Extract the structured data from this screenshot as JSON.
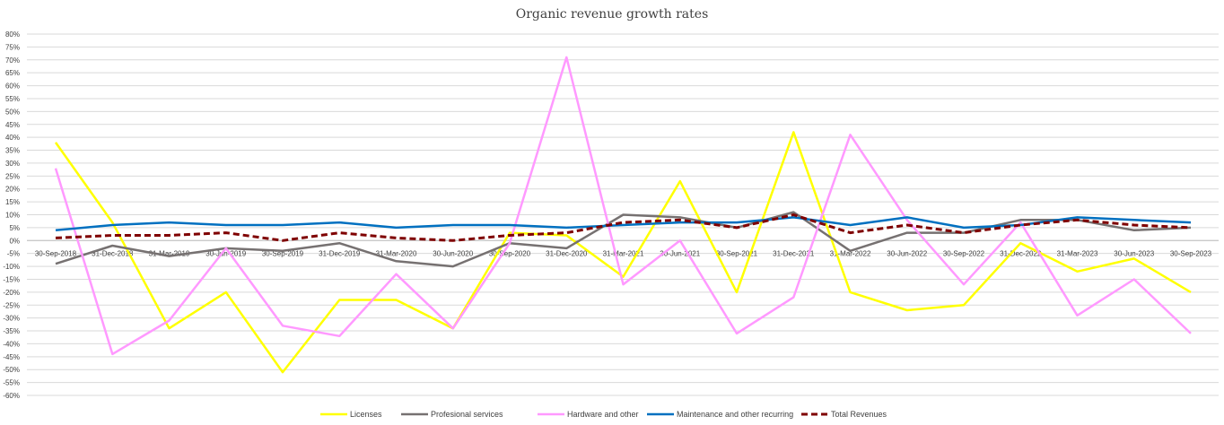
{
  "chart_data": {
    "type": "line",
    "title": "Organic revenue growth rates",
    "xlabel": "",
    "ylabel": "",
    "ylim": [
      -0.6,
      0.8
    ],
    "ytick_step": 0.05,
    "grid": true,
    "legend_position": "bottom",
    "categories": [
      "30-Sep-2018",
      "31-Dec-2018",
      "31-Mar-2019",
      "30-Jun-2019",
      "30-Sep-2019",
      "31-Dec-2019",
      "31-Mar-2020",
      "30-Jun-2020",
      "30-Sep-2020",
      "31-Dec-2020",
      "31-Mar-2021",
      "30-Jun-2021",
      "30-Sep-2021",
      "31-Dec-2021",
      "31-Mar-2022",
      "30-Jun-2022",
      "30-Sep-2022",
      "31-Dec-2022",
      "31-Mar-2023",
      "30-Jun-2023",
      "30-Sep-2023"
    ],
    "series": [
      {
        "name": "Licenses",
        "color": "#ffff00",
        "dashed": false,
        "values": [
          0.38,
          0.07,
          -0.34,
          -0.2,
          -0.51,
          -0.23,
          -0.23,
          -0.34,
          0.03,
          0.02,
          -0.14,
          0.23,
          -0.2,
          0.42,
          -0.2,
          -0.27,
          -0.25,
          -0.01,
          -0.12,
          -0.07,
          -0.2
        ]
      },
      {
        "name": "Profesional services",
        "color": "#767171",
        "dashed": false,
        "values": [
          -0.09,
          -0.02,
          -0.06,
          -0.03,
          -0.04,
          -0.01,
          -0.08,
          -0.1,
          -0.01,
          -0.03,
          0.1,
          0.09,
          0.05,
          0.11,
          -0.04,
          0.03,
          0.03,
          0.08,
          0.08,
          0.04,
          0.05
        ]
      },
      {
        "name": "Hardware and other",
        "color": "#ff99ff",
        "dashed": false,
        "values": [
          0.28,
          -0.44,
          -0.31,
          -0.03,
          -0.33,
          -0.37,
          -0.13,
          -0.34,
          -0.01,
          0.71,
          -0.17,
          0.0,
          -0.36,
          -0.22,
          0.41,
          0.08,
          -0.17,
          0.07,
          -0.29,
          -0.15,
          -0.36
        ]
      },
      {
        "name": "Maintenance and other recurring",
        "color": "#0070c0",
        "dashed": false,
        "values": [
          0.04,
          0.06,
          0.07,
          0.06,
          0.06,
          0.07,
          0.05,
          0.06,
          0.06,
          0.05,
          0.06,
          0.07,
          0.07,
          0.09,
          0.06,
          0.09,
          0.05,
          0.06,
          0.09,
          0.08,
          0.07
        ]
      },
      {
        "name": "Total Revenues",
        "color": "#7f0000",
        "dashed": true,
        "values": [
          0.01,
          0.02,
          0.02,
          0.03,
          0.0,
          0.03,
          0.01,
          0.0,
          0.02,
          0.03,
          0.07,
          0.08,
          0.05,
          0.1,
          0.03,
          0.06,
          0.03,
          0.06,
          0.08,
          0.06,
          0.05
        ]
      }
    ]
  }
}
